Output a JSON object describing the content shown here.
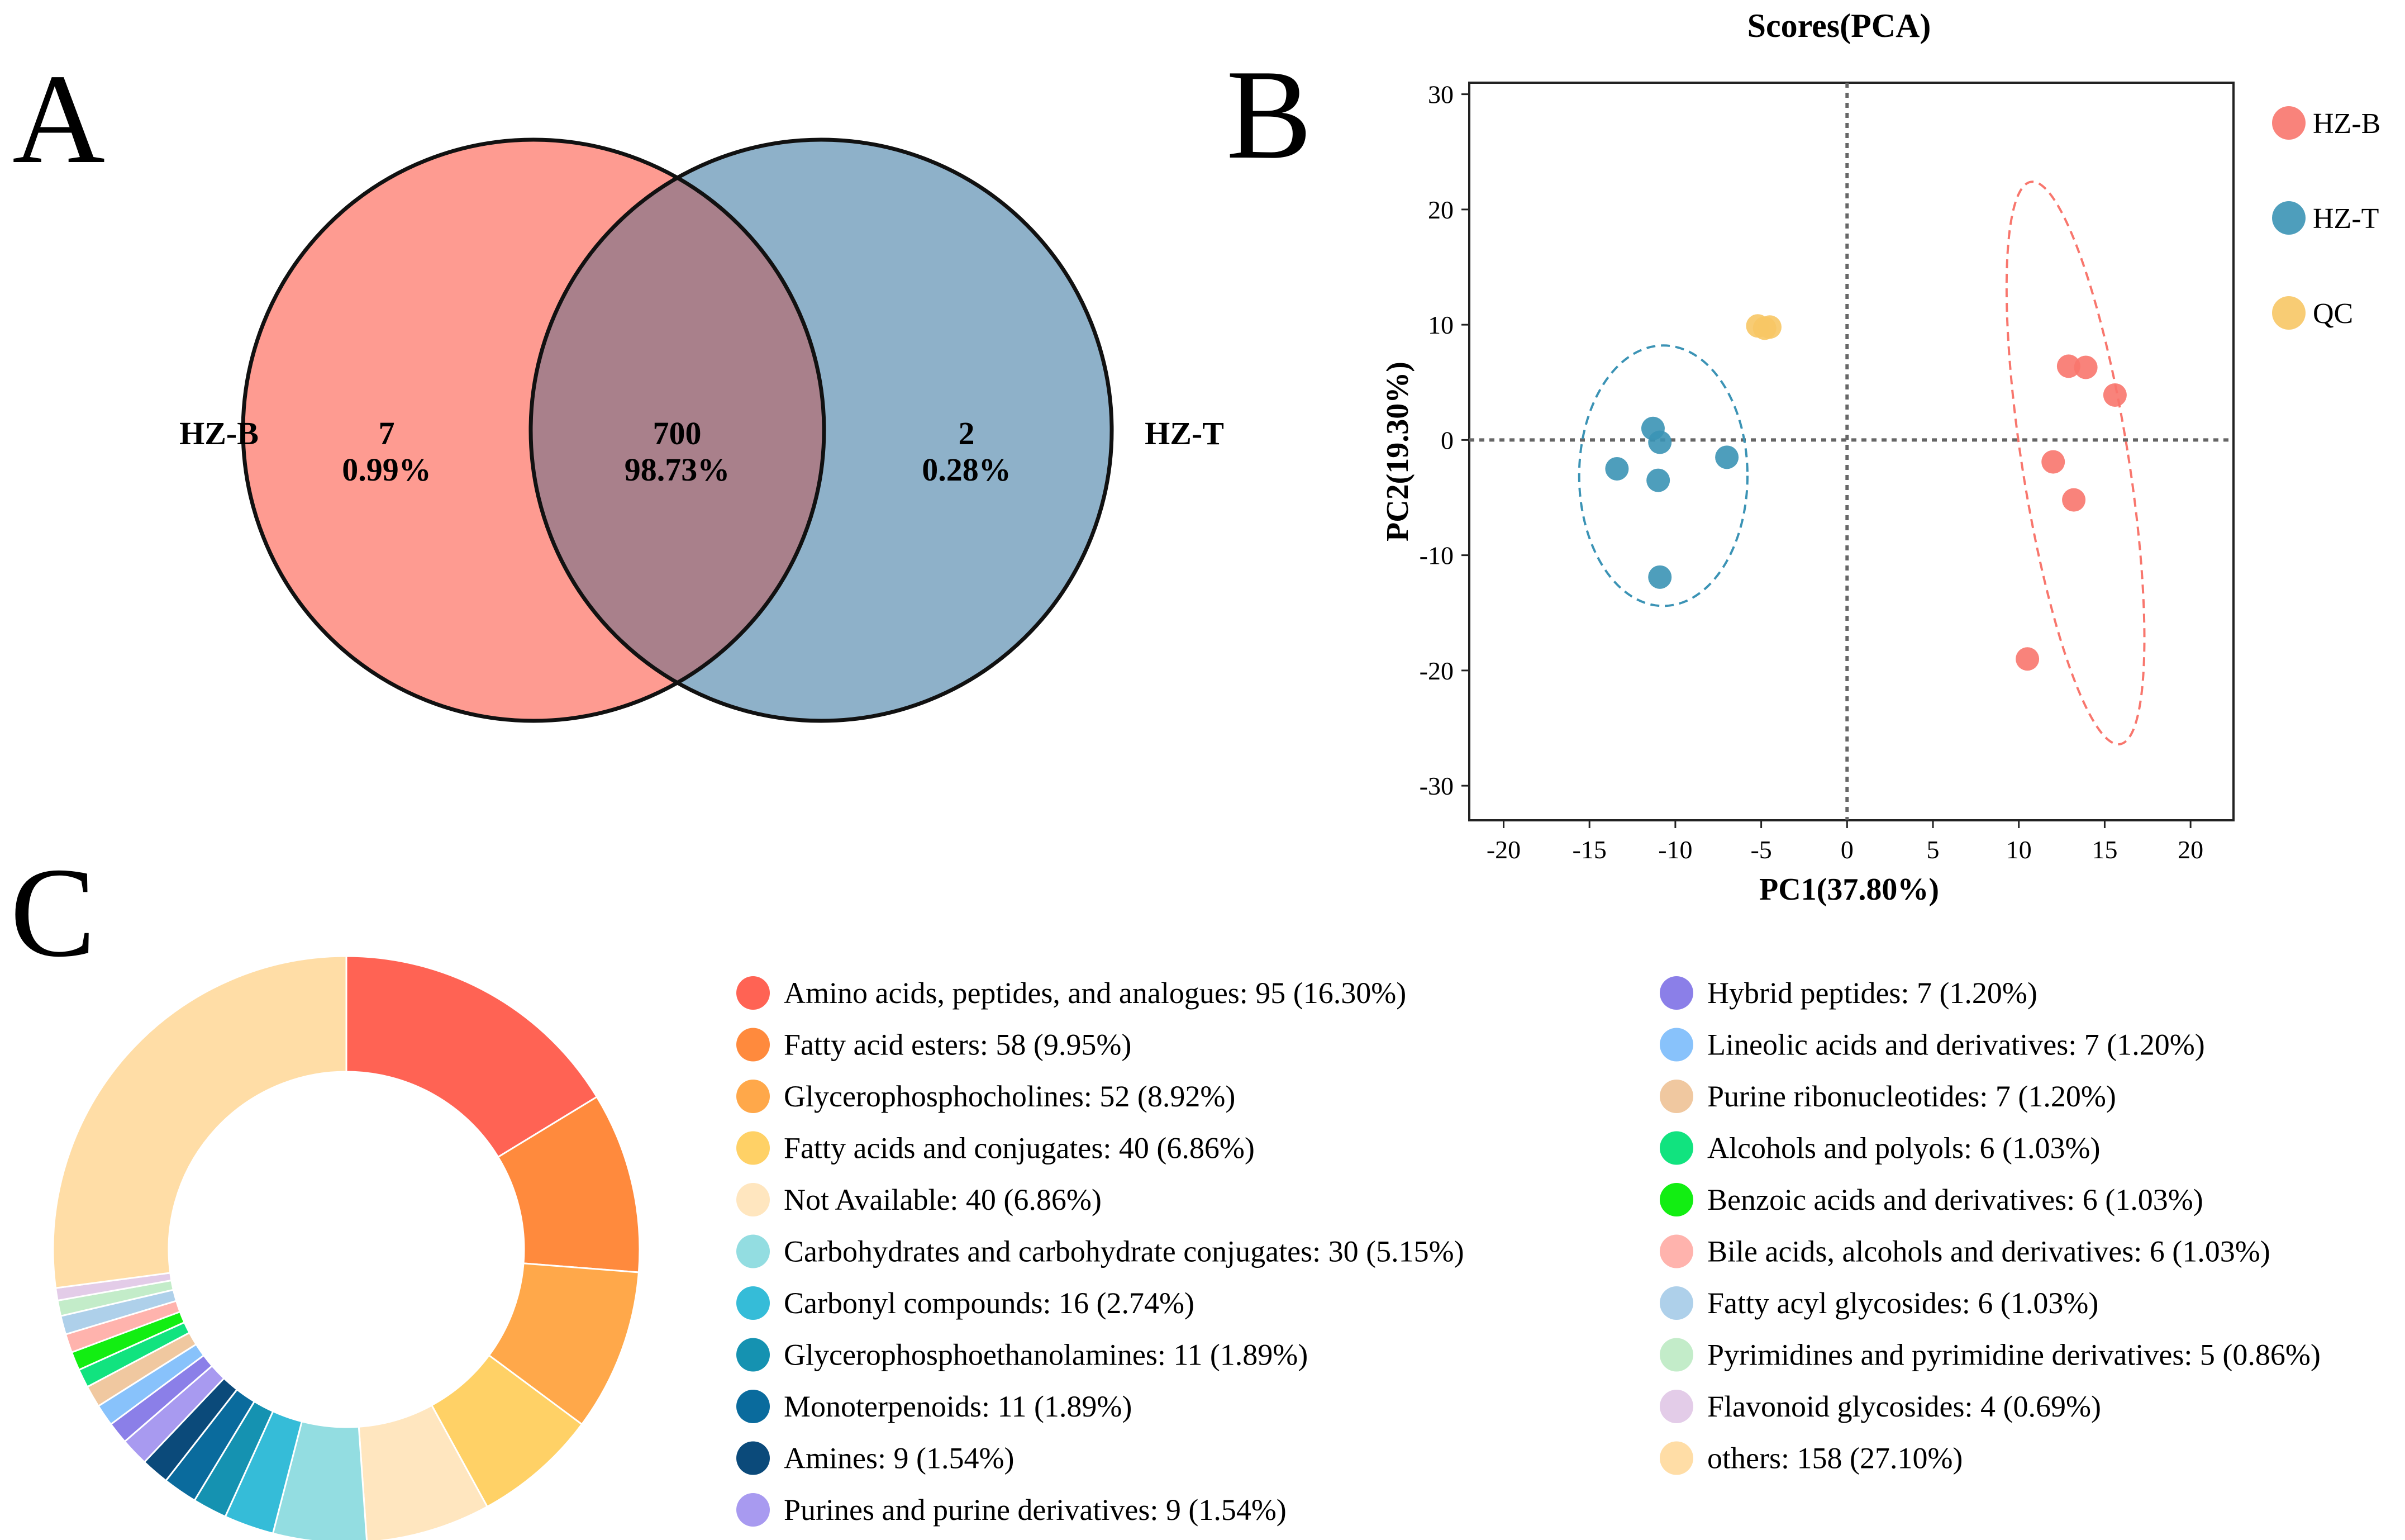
{
  "panel_labels": {
    "a": "A",
    "b": "B",
    "c": "C"
  },
  "chart_data": [
    {
      "type": "venn",
      "panel": "A",
      "sets": [
        {
          "name": "HZ-B",
          "color": "#fe9b91"
        },
        {
          "name": "HZ-T",
          "color": "#8eb1c9"
        }
      ],
      "overlap_color": "#a9808b",
      "regions": [
        {
          "id": "hzb_only",
          "count": "7",
          "percent": "0.99%"
        },
        {
          "id": "both",
          "count": "700",
          "percent": "98.73%"
        },
        {
          "id": "hzt_only",
          "count": "2",
          "percent": "0.28%"
        }
      ]
    },
    {
      "type": "scatter",
      "panel": "B",
      "title": "Scores(PCA)",
      "xlabel": "PC1(37.80%)",
      "ylabel": "PC2(19.30%)",
      "xlim": [
        -22,
        22.5
      ],
      "ylim": [
        -33,
        31
      ],
      "xticks": [
        "-20",
        "-15",
        "-10",
        "-5",
        "0",
        "5",
        "10",
        "15",
        "20"
      ],
      "yticks": [
        "30",
        "20",
        "10",
        "0",
        "-10",
        "-20",
        "-30"
      ],
      "series": [
        {
          "name": "HZ-B",
          "color": "#f8766d",
          "points": [
            [
              12.9,
              6.4
            ],
            [
              13.9,
              6.3
            ],
            [
              15.6,
              3.9
            ],
            [
              12.0,
              -1.9
            ],
            [
              13.2,
              -5.2
            ],
            [
              10.5,
              -19.0
            ]
          ],
          "ellipse": {
            "cx": 13.3,
            "cy": -2.0,
            "rx": 3.1,
            "ry": 24.7,
            "angle_deg": -9
          }
        },
        {
          "name": "HZ-T",
          "color": "#3b93b5",
          "points": [
            [
              -11.3,
              1.0
            ],
            [
              -10.9,
              -0.2
            ],
            [
              -13.4,
              -2.5
            ],
            [
              -11.0,
              -3.5
            ],
            [
              -7.0,
              -1.5
            ],
            [
              -10.9,
              -11.9
            ]
          ],
          "ellipse": {
            "cx": -10.7,
            "cy": -3.1,
            "rx": 4.9,
            "ry": 11.3,
            "angle_deg": 0
          }
        },
        {
          "name": "QC",
          "color": "#f7c765",
          "points": [
            [
              -5.2,
              9.9
            ],
            [
              -4.8,
              9.7
            ],
            [
              -4.5,
              9.8
            ]
          ]
        }
      ]
    },
    {
      "type": "pie",
      "panel": "C",
      "donut": true,
      "slices": [
        {
          "label": "Amino acids, peptides, and analogues: 95 (16.30%)",
          "value": 95,
          "color": "#ff6354"
        },
        {
          "label": "Fatty acid esters: 58 (9.95%)",
          "value": 58,
          "color": "#ff8a3d"
        },
        {
          "label": "Glycerophosphocholines: 52 (8.92%)",
          "value": 52,
          "color": "#ffa84a"
        },
        {
          "label": "Fatty acids and conjugates: 40 (6.86%)",
          "value": 40,
          "color": "#ffd166"
        },
        {
          "label": "Not Available: 40 (6.86%)",
          "value": 40,
          "color": "#ffe6bf"
        },
        {
          "label": "Carbohydrates and carbohydrate conjugates: 30 (5.15%)",
          "value": 30,
          "color": "#93dde1"
        },
        {
          "label": "Carbonyl compounds: 16 (2.74%)",
          "value": 16,
          "color": "#35bcd8"
        },
        {
          "label": "Glycerophosphoethanolamines: 11 (1.89%)",
          "value": 11,
          "color": "#1592b1"
        },
        {
          "label": "Monoterpenoids: 11 (1.89%)",
          "value": 11,
          "color": "#0a6b9d"
        },
        {
          "label": "Amines: 9 (1.54%)",
          "value": 9,
          "color": "#0b4a7a"
        },
        {
          "label": "Purines and purine derivatives: 9 (1.54%)",
          "value": 9,
          "color": "#a89af0"
        },
        {
          "label": "Hybrid peptides: 7 (1.20%)",
          "value": 7,
          "color": "#8b7fe8"
        },
        {
          "label": "Lineolic acids and derivatives: 7 (1.20%)",
          "value": 7,
          "color": "#88c2fb"
        },
        {
          "label": "Purine ribonucleotides: 7 (1.20%)",
          "value": 7,
          "color": "#f0c8a0"
        },
        {
          "label": "Alcohols and polyols: 6 (1.03%)",
          "value": 6,
          "color": "#11e37f"
        },
        {
          "label": "Benzoic acids and derivatives: 6 (1.03%)",
          "value": 6,
          "color": "#12ee12"
        },
        {
          "label": "Bile acids, alcohols and derivatives: 6 (1.03%)",
          "value": 6,
          "color": "#ffb3ad"
        },
        {
          "label": "Fatty acyl glycosides: 6 (1.03%)",
          "value": 6,
          "color": "#aed0ea"
        },
        {
          "label": "Pyrimidines and pyrimidine derivatives: 5 (0.86%)",
          "value": 5,
          "color": "#c3ecc9"
        },
        {
          "label": "Flavonoid glycosides: 4 (0.69%)",
          "value": 4,
          "color": "#e3cce8"
        },
        {
          "label": "others: 158 (27.10%)",
          "value": 158,
          "color": "#ffdda6"
        }
      ]
    }
  ]
}
